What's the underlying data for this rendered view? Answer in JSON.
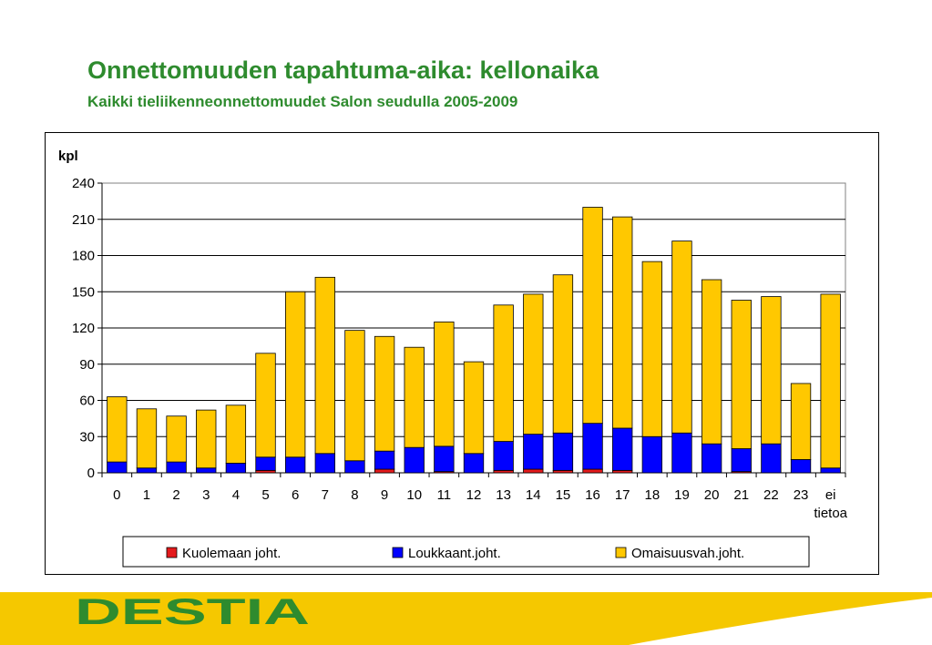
{
  "header": {
    "title": "Onnettomuuden tapahtuma-aika: kellonaika",
    "subtitle": "Kaikki tieliikenneonnettomuudet Salon seudulla 2005-2009"
  },
  "footer": {
    "logo_text": "DESTIA"
  },
  "colors": {
    "title_green": "#2e8b2e",
    "band_yellow": "#f5c800",
    "logo_green": "#2e8b2e",
    "series_red": "#e41a1c",
    "series_blue": "#0000ff",
    "series_yellow": "#ffc800"
  },
  "chart_data": {
    "type": "bar",
    "stacked": true,
    "ylabel": "kpl",
    "xlabel": "",
    "ylim": [
      0,
      240
    ],
    "yticks": [
      0,
      30,
      60,
      90,
      120,
      150,
      180,
      210,
      240
    ],
    "grid": true,
    "legend_position": "bottom",
    "categories": [
      "0",
      "1",
      "2",
      "3",
      "4",
      "5",
      "6",
      "7",
      "8",
      "9",
      "10",
      "11",
      "12",
      "13",
      "14",
      "15",
      "16",
      "17",
      "18",
      "19",
      "20",
      "21",
      "22",
      "23",
      "ei tietoa"
    ],
    "series": [
      {
        "name": "Kuolemaan joht.",
        "color": "#e41a1c",
        "values": [
          0,
          0,
          0,
          0,
          0,
          2,
          0,
          0,
          0,
          3,
          0,
          1,
          0,
          2,
          3,
          2,
          3,
          2,
          0,
          0,
          0,
          1,
          0,
          0,
          0
        ]
      },
      {
        "name": "Loukkaant.joht.",
        "color": "#0000ff",
        "values": [
          9,
          4,
          9,
          4,
          8,
          11,
          13,
          16,
          10,
          15,
          21,
          21,
          16,
          24,
          29,
          31,
          38,
          35,
          30,
          33,
          24,
          19,
          24,
          11,
          4
        ]
      },
      {
        "name": "Omaisuusvah.joht.",
        "color": "#ffc800",
        "values": [
          54,
          49,
          38,
          48,
          48,
          86,
          137,
          146,
          108,
          95,
          83,
          103,
          76,
          113,
          116,
          131,
          179,
          175,
          145,
          159,
          136,
          123,
          122,
          63,
          144
        ]
      }
    ]
  }
}
